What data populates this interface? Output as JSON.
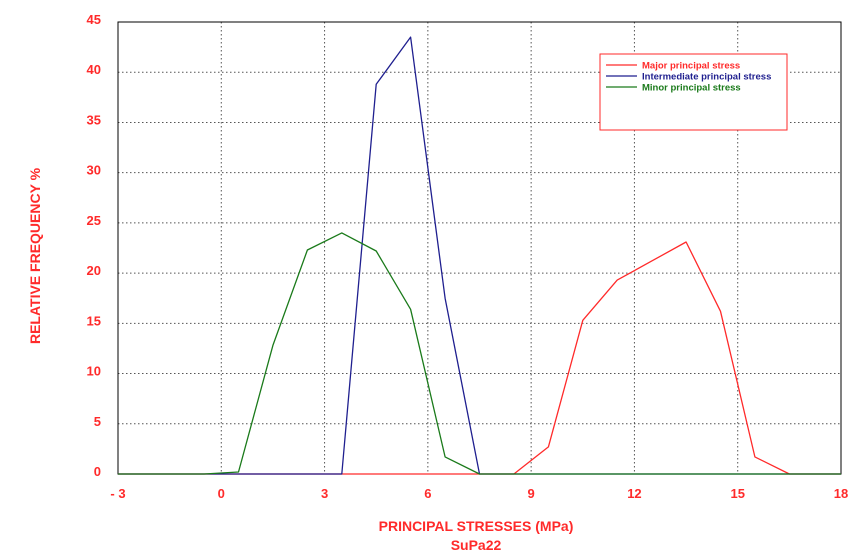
{
  "chart_data": {
    "type": "line",
    "xlabel": "PRINCIPAL STRESSES (MPa)",
    "subtitle": "SuPa22",
    "ylabel": "RELATIVE FREQUENCY %",
    "xlim": [
      -3,
      18
    ],
    "ylim": [
      0,
      45
    ],
    "x_ticks": [
      -3,
      0,
      3,
      6,
      9,
      12,
      15,
      18
    ],
    "x_tick_labels": [
      "- 3",
      "0",
      "3",
      "6",
      "9",
      "12",
      "15",
      "18"
    ],
    "y_ticks": [
      0,
      5,
      10,
      15,
      20,
      25,
      30,
      35,
      40,
      45
    ],
    "y_tick_labels": [
      "0",
      "5",
      "10",
      "15",
      "20",
      "25",
      "30",
      "35",
      "40",
      "45"
    ],
    "grid": true,
    "legend_position": "top-right",
    "series": [
      {
        "name": "Major principal stress",
        "color": "#ff2a2a",
        "points": [
          [
            -3,
            0
          ],
          [
            8.5,
            0
          ],
          [
            9.5,
            2.7
          ],
          [
            10.5,
            15.3
          ],
          [
            11.5,
            19.3
          ],
          [
            12.5,
            21.2
          ],
          [
            13.5,
            23.1
          ],
          [
            14.5,
            16.2
          ],
          [
            15.5,
            1.7
          ],
          [
            16.5,
            0
          ],
          [
            18,
            0
          ]
        ]
      },
      {
        "name": "Intermediate principal stress",
        "color": "#1f1f8f",
        "points": [
          [
            -3,
            0
          ],
          [
            3.5,
            0
          ],
          [
            4.5,
            38.8
          ],
          [
            5.5,
            43.5
          ],
          [
            6.5,
            17.5
          ],
          [
            7.5,
            0
          ],
          [
            18,
            0
          ]
        ]
      },
      {
        "name": "Minor principal stress",
        "color": "#1a7a1a",
        "points": [
          [
            -3,
            0
          ],
          [
            -0.5,
            0
          ],
          [
            0.5,
            0.2
          ],
          [
            1.5,
            12.8
          ],
          [
            2.5,
            22.3
          ],
          [
            3.5,
            24.0
          ],
          [
            4.5,
            22.2
          ],
          [
            5.5,
            16.4
          ],
          [
            6.5,
            1.7
          ],
          [
            7.5,
            0
          ],
          [
            18,
            0
          ]
        ]
      }
    ]
  }
}
